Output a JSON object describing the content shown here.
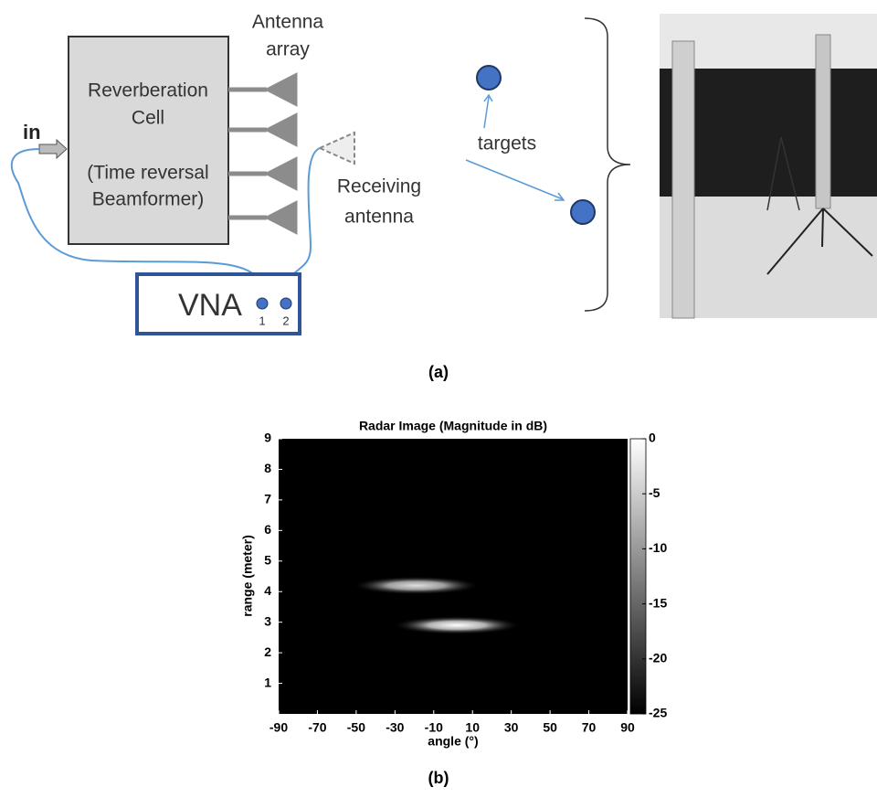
{
  "diagram": {
    "block_lines": [
      "Reverberation",
      "Cell",
      "(Time reversal",
      "Beamformer)"
    ],
    "input": "in",
    "antenna_array": [
      "Antenna",
      "array"
    ],
    "receiving_antenna": [
      "Receiving",
      "antenna"
    ],
    "vna": "VNA",
    "ports": [
      "1",
      "2"
    ],
    "targets": "targets",
    "panel_label": "(a)"
  },
  "chart_data": {
    "type": "heatmap",
    "title": "Radar Image (Magnitude in dB)",
    "x_label": "angle (°)",
    "y_label": "range (meter)",
    "xlim": [
      -90,
      90
    ],
    "xticks": [
      -90,
      -70,
      -50,
      -30,
      -10,
      10,
      30,
      50,
      70,
      90
    ],
    "ylim": [
      0,
      9
    ],
    "yticks": [
      1,
      2,
      3,
      4,
      5,
      6,
      7,
      8,
      9
    ],
    "colorbar_lim": [
      -25,
      0
    ],
    "colorbar_ticks": [
      0,
      -5,
      -10,
      -15,
      -20,
      -25
    ],
    "spots": {
      "angle": [
        -19,
        2
      ],
      "range": [
        4.2,
        2.9
      ],
      "values": [
        -3,
        0
      ]
    },
    "panel_label": "(b)"
  }
}
